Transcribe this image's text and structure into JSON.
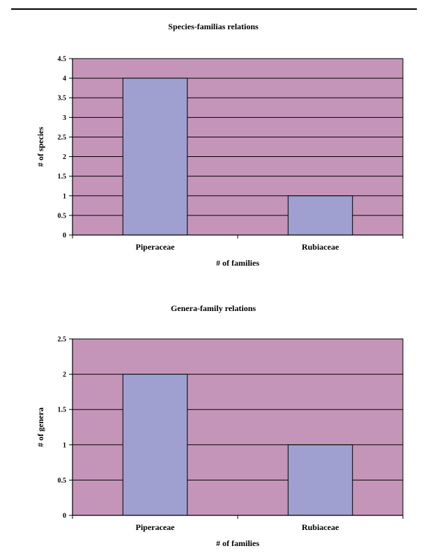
{
  "colors": {
    "plot_background": "#c495b9",
    "bar_fill": "#9f9fd0",
    "line": "#000000"
  },
  "chart_data": [
    {
      "type": "bar",
      "title": "Species-familias relations",
      "xlabel": "# of families",
      "ylabel": "# of species",
      "categories": [
        "Piperaceae",
        "Rubiaceae"
      ],
      "values": [
        4,
        1
      ],
      "ylim": [
        0,
        4.5
      ],
      "yticks": [
        "0",
        "0.5",
        "1",
        "1.5",
        "2",
        "2.5",
        "3",
        "3.5",
        "4",
        "4.5"
      ],
      "grid": true,
      "legend": "none"
    },
    {
      "type": "bar",
      "title": "Genera-family relations",
      "xlabel": "# of families",
      "ylabel": "# of genera",
      "categories": [
        "Piperaceae",
        "Rubiaceae"
      ],
      "values": [
        2,
        1
      ],
      "ylim": [
        0,
        2.5
      ],
      "yticks": [
        "0",
        "0.5",
        "1",
        "1.5",
        "2",
        "2.5"
      ],
      "grid": true,
      "legend": "none"
    }
  ]
}
